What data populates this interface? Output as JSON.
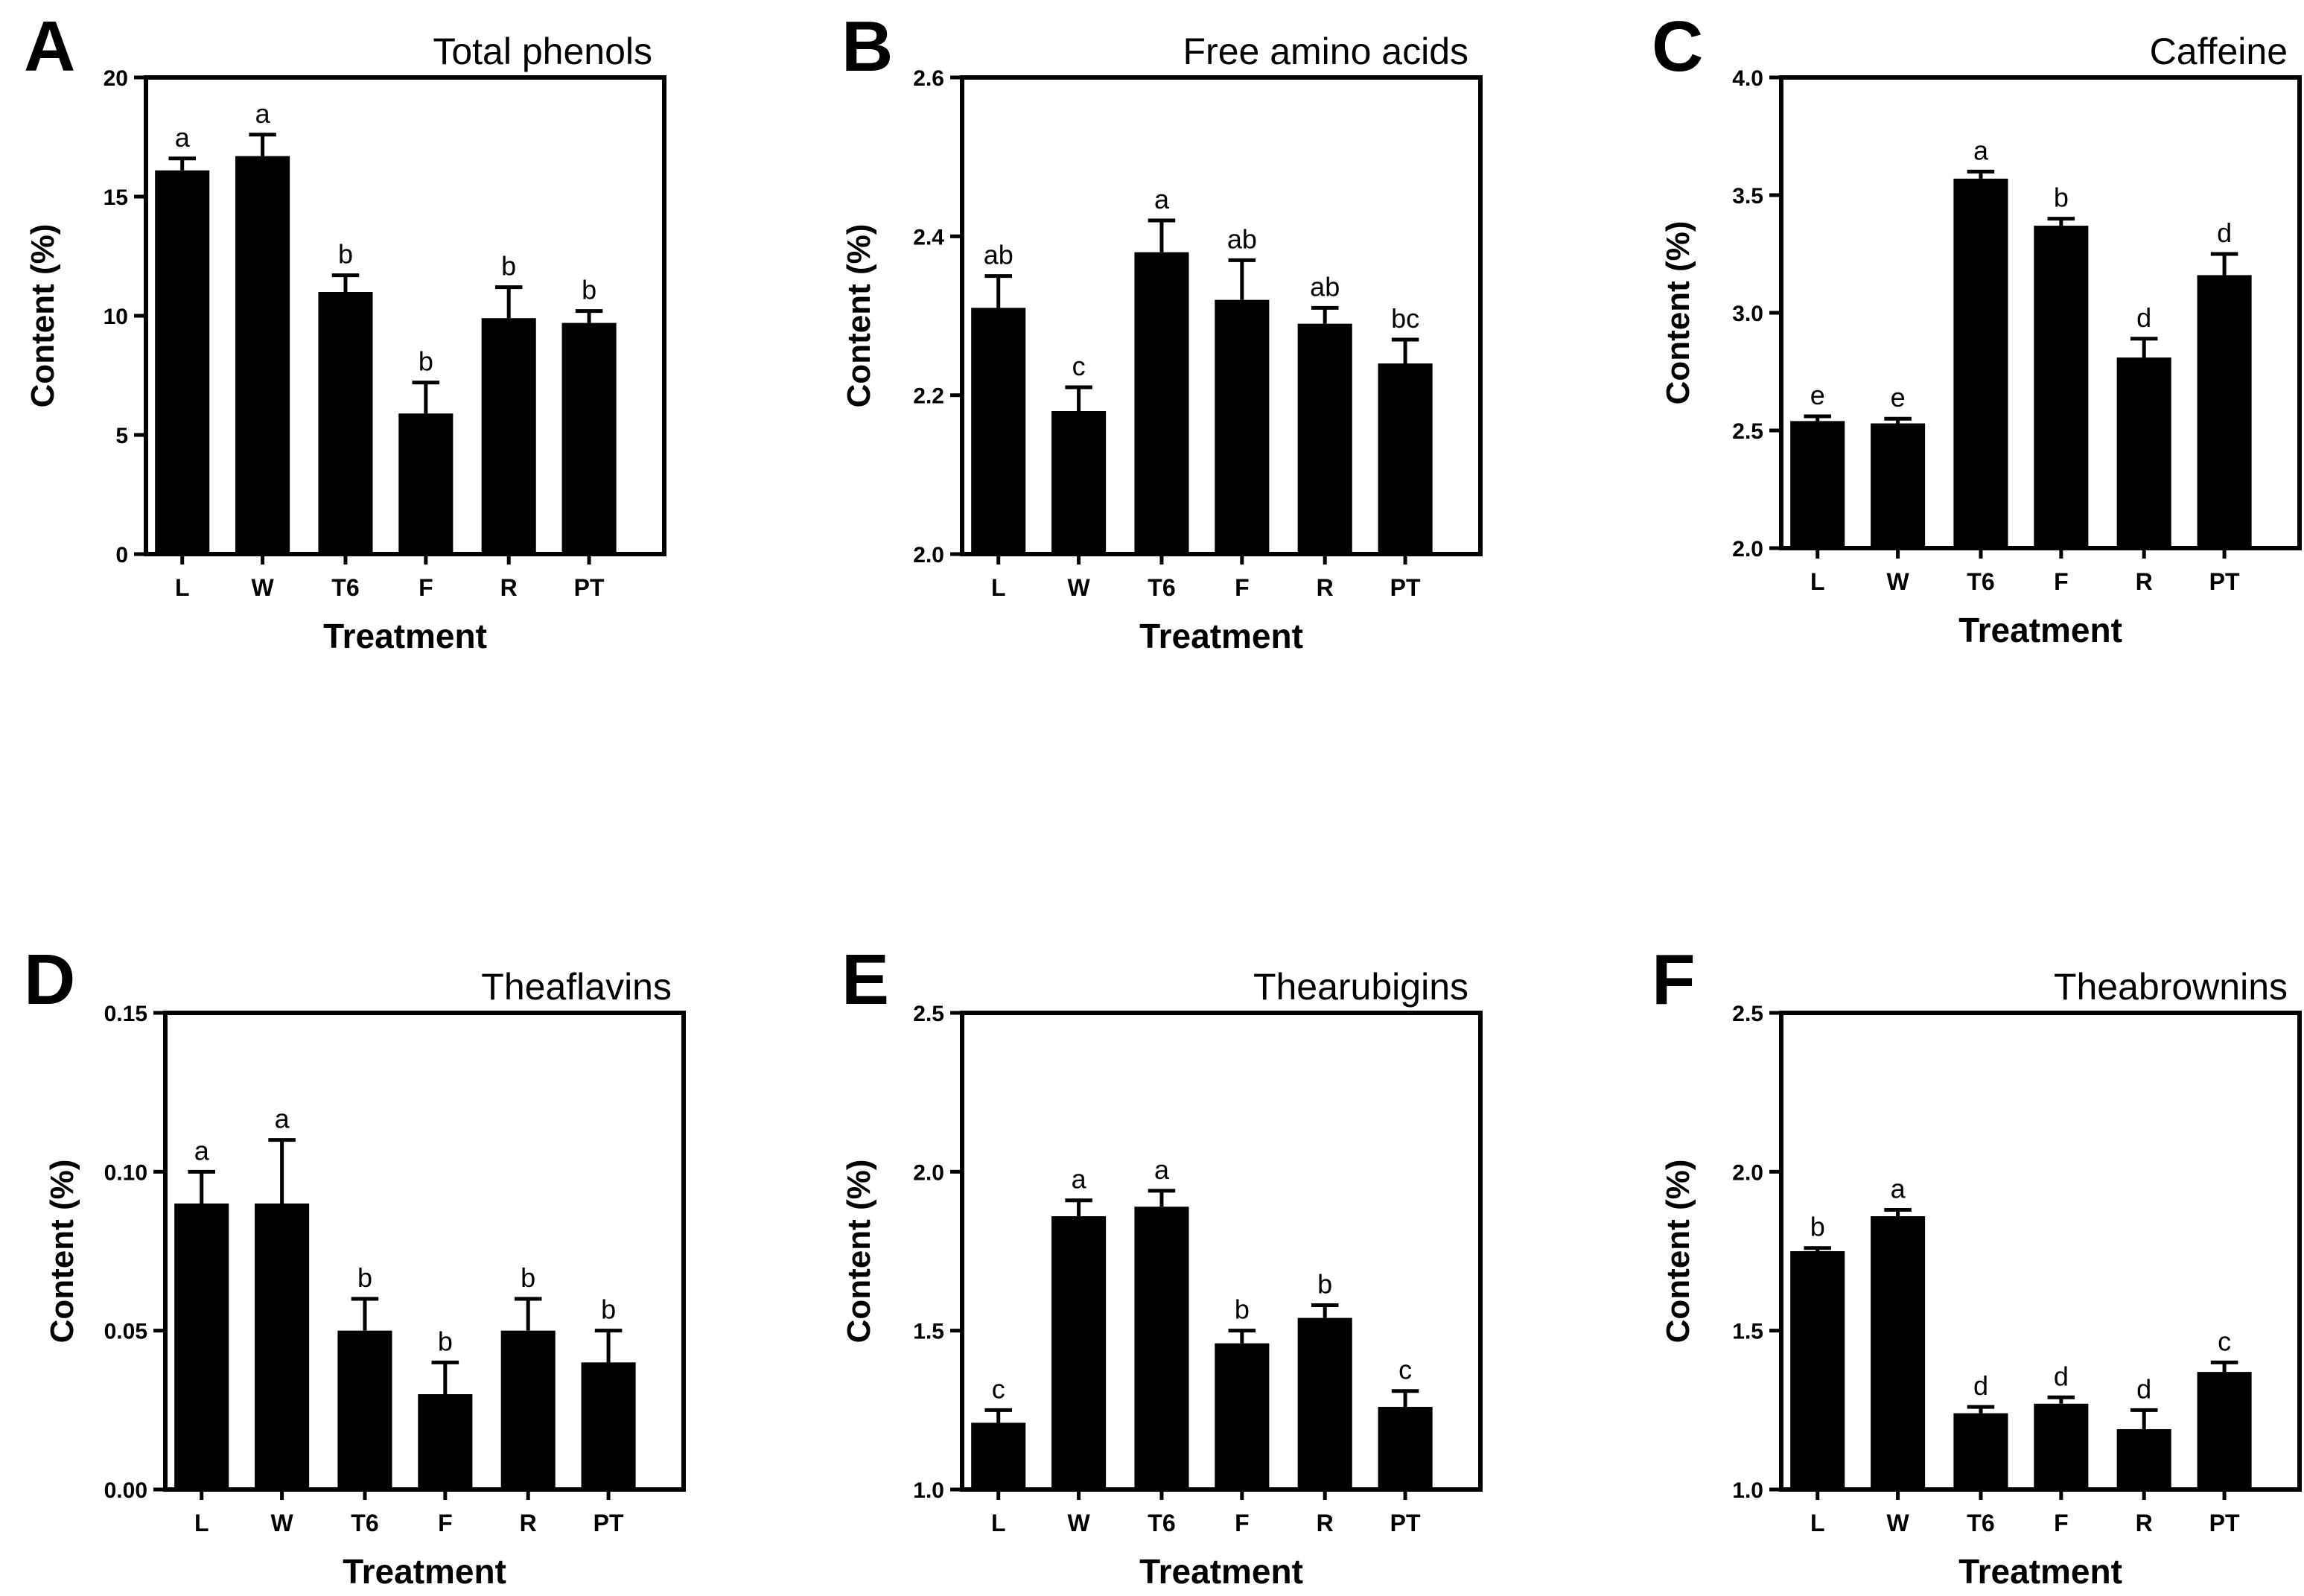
{
  "chart_data": [
    {
      "type": "bar",
      "panel_label": "A",
      "title": "Total phenols",
      "xlabel": "Treatment",
      "ylabel": "Content (%)",
      "categories": [
        "L",
        "W",
        "T6",
        "F",
        "R",
        "PT"
      ],
      "values": [
        16.1,
        16.7,
        11.0,
        5.9,
        9.9,
        9.7
      ],
      "errors": [
        0.5,
        0.9,
        0.7,
        1.3,
        1.3,
        0.5
      ],
      "significance": [
        "a",
        "a",
        "b",
        "b",
        "b",
        "b"
      ],
      "ylim": [
        0,
        20
      ],
      "yticks": [
        "0",
        "5",
        "10",
        "15",
        "20"
      ]
    },
    {
      "type": "bar",
      "panel_label": "B",
      "title": "Free amino acids",
      "xlabel": "Treatment",
      "ylabel": "Content (%)",
      "categories": [
        "L",
        "W",
        "T6",
        "F",
        "R",
        "PT"
      ],
      "values": [
        2.31,
        2.18,
        2.38,
        2.32,
        2.29,
        2.24
      ],
      "errors": [
        0.04,
        0.03,
        0.04,
        0.05,
        0.02,
        0.03
      ],
      "significance": [
        "ab",
        "c",
        "a",
        "ab",
        "ab",
        "bc"
      ],
      "ylim": [
        2.0,
        2.6
      ],
      "yticks": [
        "2.0",
        "2.2",
        "2.4",
        "2.6"
      ]
    },
    {
      "type": "bar",
      "panel_label": "C",
      "title": "Caffeine",
      "xlabel": "Treatment",
      "ylabel": "Content (%)",
      "categories": [
        "L",
        "W",
        "T6",
        "F",
        "R",
        "PT"
      ],
      "values": [
        2.54,
        2.53,
        3.57,
        3.37,
        2.81,
        3.16
      ],
      "errors": [
        0.02,
        0.02,
        0.03,
        0.03,
        0.08,
        0.09
      ],
      "significance": [
        "e",
        "e",
        "a",
        "b",
        "d",
        "d"
      ],
      "ylim": [
        2.0,
        4.0
      ],
      "yticks": [
        "2.0",
        "2.5",
        "3.0",
        "3.5",
        "4.0"
      ]
    },
    {
      "type": "bar",
      "panel_label": "D",
      "title": "Theaflavins",
      "xlabel": "Treatment",
      "ylabel": "Content (%)",
      "categories": [
        "L",
        "W",
        "T6",
        "F",
        "R",
        "PT"
      ],
      "values": [
        0.09,
        0.09,
        0.05,
        0.03,
        0.05,
        0.04
      ],
      "errors": [
        0.01,
        0.02,
        0.01,
        0.01,
        0.01,
        0.01
      ],
      "significance": [
        "a",
        "a",
        "b",
        "b",
        "b",
        "b"
      ],
      "ylim": [
        0,
        0.15
      ],
      "yticks": [
        "0.00",
        "0.05",
        "0.10",
        "0.15"
      ]
    },
    {
      "type": "bar",
      "panel_label": "E",
      "title": "Thearubigins",
      "xlabel": "Treatment",
      "ylabel": "Content (%)",
      "categories": [
        "L",
        "W",
        "T6",
        "F",
        "R",
        "PT"
      ],
      "values": [
        1.21,
        1.86,
        1.89,
        1.46,
        1.54,
        1.26
      ],
      "errors": [
        0.04,
        0.05,
        0.05,
        0.04,
        0.04,
        0.05
      ],
      "significance": [
        "c",
        "a",
        "a",
        "b",
        "b",
        "c"
      ],
      "ylim": [
        1.0,
        2.5
      ],
      "yticks": [
        "1.0",
        "1.5",
        "2.0",
        "2.5"
      ]
    },
    {
      "type": "bar",
      "panel_label": "F",
      "title": "Theabrownins",
      "xlabel": "Treatment",
      "ylabel": "Content (%)",
      "categories": [
        "L",
        "W",
        "T6",
        "F",
        "R",
        "PT"
      ],
      "values": [
        1.75,
        1.86,
        1.24,
        1.27,
        1.19,
        1.37
      ],
      "errors": [
        0.01,
        0.02,
        0.02,
        0.02,
        0.06,
        0.03
      ],
      "significance": [
        "b",
        "a",
        "d",
        "d",
        "d",
        "c"
      ],
      "ylim": [
        1.0,
        2.5
      ],
      "yticks": [
        "1.0",
        "1.5",
        "2.0",
        "2.5"
      ]
    }
  ]
}
